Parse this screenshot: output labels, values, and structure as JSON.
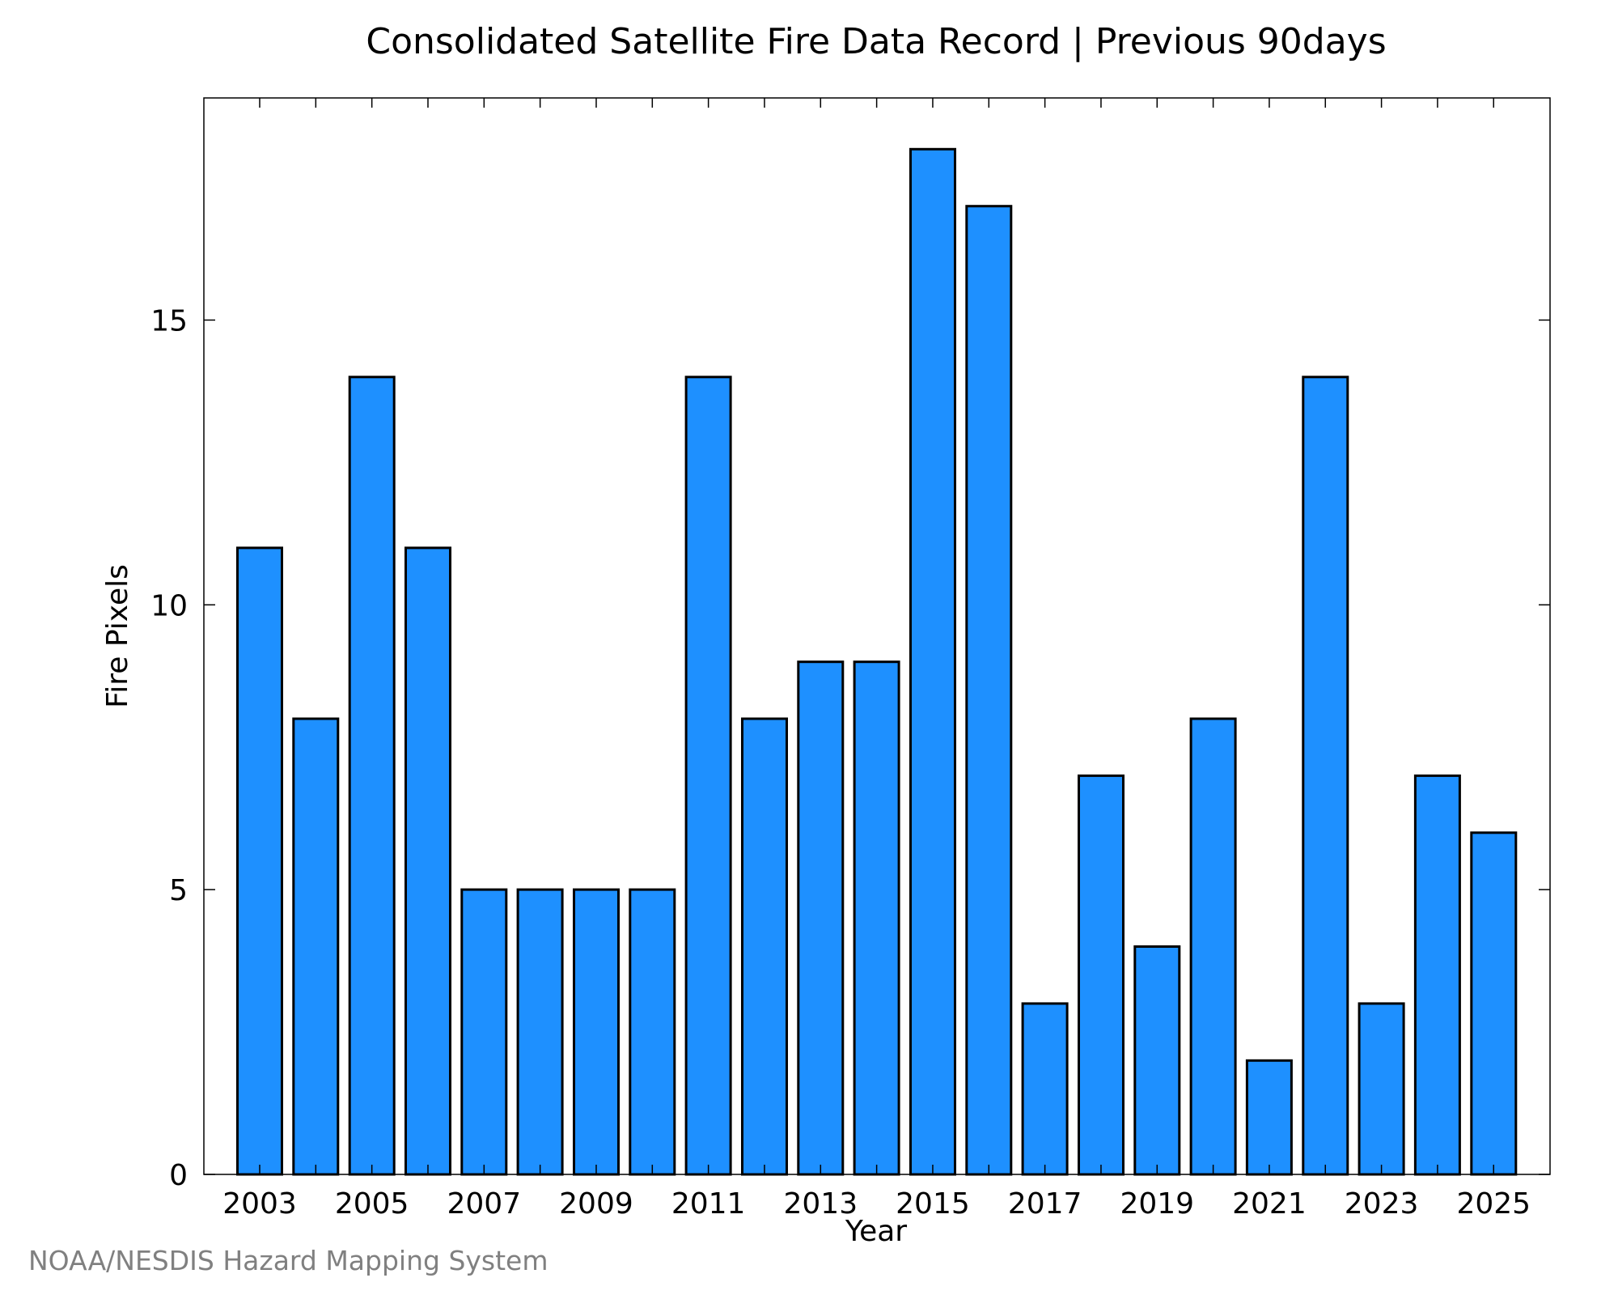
{
  "chart_data": {
    "type": "bar",
    "title": "Consolidated Satellite Fire Data Record | Previous 90days",
    "xlabel": "Year",
    "ylabel": "Fire Pixels",
    "categories": [
      "2003",
      "2004",
      "2005",
      "2006",
      "2007",
      "2008",
      "2009",
      "2010",
      "2011",
      "2012",
      "2013",
      "2014",
      "2015",
      "2016",
      "2017",
      "2018",
      "2019",
      "2020",
      "2021",
      "2022",
      "2023",
      "2024",
      "2025"
    ],
    "values": [
      11,
      8,
      14,
      11,
      5,
      5,
      5,
      5,
      14,
      8,
      9,
      9,
      18,
      17,
      3,
      7,
      4,
      8,
      2,
      14,
      3,
      7,
      6
    ],
    "x_tick_labels": [
      "2003",
      "2005",
      "2007",
      "2009",
      "2011",
      "2013",
      "2015",
      "2017",
      "2019",
      "2021",
      "2023",
      "2025"
    ],
    "y_ticks": [
      0,
      5,
      10,
      15
    ],
    "ylim": [
      0,
      18.9
    ],
    "grid": false,
    "bar_color": "#1e90ff",
    "edge_color": "#000000"
  },
  "footer": {
    "credit": "NOAA/NESDIS Hazard Mapping System"
  }
}
